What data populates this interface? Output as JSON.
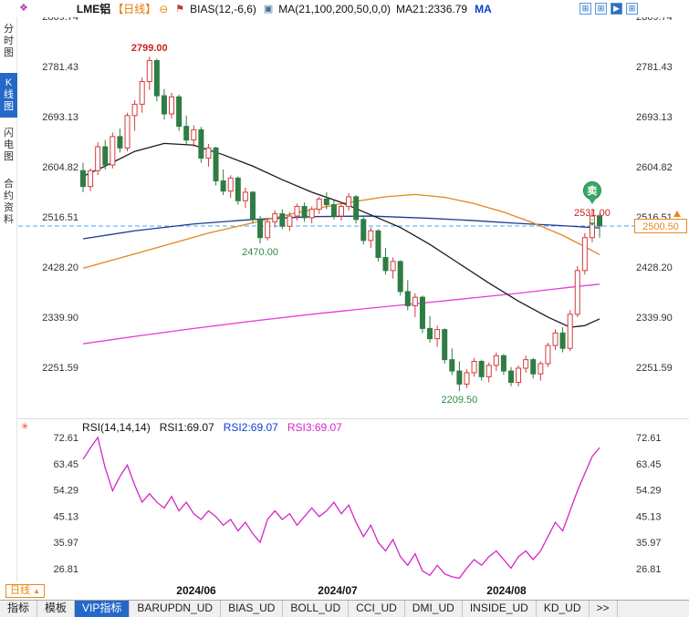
{
  "header": {
    "logo_icon": "❖",
    "symbol": "LME铝",
    "period": "【日线】",
    "minus_icon": "⊖",
    "pin_icon": "⚑",
    "bias_label": "BIAS(12,-6,6)",
    "box_icon": "▣",
    "ma_label": "MA(21,100,200,50,0,0)",
    "ma21_label": "MA21:2336.79",
    "ma_badge": "MA",
    "window_icons": [
      "⊞",
      "⊞",
      "▶",
      "⊞"
    ]
  },
  "sidebar": {
    "items": [
      {
        "label": "分时图",
        "active": false
      },
      {
        "label": "K线图",
        "active": true
      },
      {
        "label": "闪电图",
        "active": false
      },
      {
        "label": "合约资料",
        "active": false
      }
    ]
  },
  "rsi_header": {
    "star_icon": "✳",
    "label": "RSI(14,14,14)",
    "rsi1": "RSI1:69.07",
    "rsi2": "RSI2:69.07",
    "rsi3": "RSI3:69.07"
  },
  "bottom": {
    "period_label": "日线",
    "period_arrow": "▲",
    "tabs": [
      {
        "label": "指标",
        "active": false
      },
      {
        "label": "模板",
        "active": false
      },
      {
        "label": "VIP指标",
        "active": true
      },
      {
        "label": "BARUPDN_UD",
        "active": false
      },
      {
        "label": "BIAS_UD",
        "active": false
      },
      {
        "label": "BOLL_UD",
        "active": false
      },
      {
        "label": "CCI_UD",
        "active": false
      },
      {
        "label": "DMI_UD",
        "active": false
      },
      {
        "label": "INSIDE_UD",
        "active": false
      },
      {
        "label": "KD_UD",
        "active": false
      },
      {
        "label": ">>",
        "active": false
      }
    ]
  },
  "colors": {
    "up": "#d23c3c",
    "down": "#2e7d45",
    "dashed_line": "#4da6ff",
    "last_price": "#e8891a",
    "signal": "#3aa764",
    "rsi_line": "#d327c7",
    "high_label": "#cc2222",
    "low_label": "#2e8b44"
  },
  "chart_data": {
    "type": "candlestick",
    "title": "LME铝 日线",
    "price_axis": [
      2869.74,
      2781.43,
      2693.13,
      2604.82,
      2516.51,
      2428.2,
      2339.9,
      2251.59
    ],
    "x_labels": [
      "2024/06",
      "2024/07",
      "2024/08"
    ],
    "candles": [
      [
        2598,
        2612,
        2560,
        2570
      ],
      [
        2570,
        2602,
        2562,
        2598
      ],
      [
        2598,
        2648,
        2590,
        2640
      ],
      [
        2640,
        2652,
        2600,
        2608
      ],
      [
        2608,
        2665,
        2602,
        2658
      ],
      [
        2658,
        2672,
        2630,
        2638
      ],
      [
        2638,
        2700,
        2632,
        2695
      ],
      [
        2695,
        2722,
        2668,
        2715
      ],
      [
        2715,
        2762,
        2700,
        2755
      ],
      [
        2755,
        2799,
        2740,
        2792
      ],
      [
        2792,
        2795,
        2720,
        2730
      ],
      [
        2730,
        2742,
        2688,
        2698
      ],
      [
        2698,
        2735,
        2690,
        2728
      ],
      [
        2728,
        2732,
        2668,
        2676
      ],
      [
        2676,
        2695,
        2645,
        2652
      ],
      [
        2652,
        2678,
        2640,
        2670
      ],
      [
        2670,
        2675,
        2612,
        2620
      ],
      [
        2620,
        2645,
        2605,
        2638
      ],
      [
        2638,
        2640,
        2572,
        2580
      ],
      [
        2580,
        2600,
        2555,
        2562
      ],
      [
        2562,
        2590,
        2550,
        2585
      ],
      [
        2585,
        2588,
        2538,
        2545
      ],
      [
        2545,
        2568,
        2532,
        2560
      ],
      [
        2560,
        2562,
        2505,
        2512
      ],
      [
        2512,
        2518,
        2470,
        2480
      ],
      [
        2480,
        2512,
        2475,
        2508
      ],
      [
        2508,
        2528,
        2498,
        2522
      ],
      [
        2522,
        2530,
        2495,
        2500
      ],
      [
        2500,
        2525,
        2492,
        2518
      ],
      [
        2518,
        2540,
        2510,
        2535
      ],
      [
        2535,
        2542,
        2508,
        2515
      ],
      [
        2515,
        2535,
        2505,
        2530
      ],
      [
        2530,
        2552,
        2522,
        2548
      ],
      [
        2548,
        2560,
        2530,
        2538
      ],
      [
        2538,
        2545,
        2512,
        2518
      ],
      [
        2518,
        2542,
        2510,
        2535
      ],
      [
        2535,
        2558,
        2528,
        2552
      ],
      [
        2552,
        2555,
        2505,
        2512
      ],
      [
        2512,
        2518,
        2468,
        2475
      ],
      [
        2475,
        2498,
        2462,
        2492
      ],
      [
        2492,
        2495,
        2438,
        2445
      ],
      [
        2445,
        2462,
        2415,
        2422
      ],
      [
        2422,
        2445,
        2408,
        2438
      ],
      [
        2438,
        2440,
        2378,
        2385
      ],
      [
        2385,
        2405,
        2352,
        2360
      ],
      [
        2360,
        2382,
        2340,
        2375
      ],
      [
        2375,
        2378,
        2312,
        2320
      ],
      [
        2320,
        2342,
        2295,
        2302
      ],
      [
        2302,
        2325,
        2288,
        2318
      ],
      [
        2318,
        2320,
        2258,
        2265
      ],
      [
        2265,
        2285,
        2238,
        2245
      ],
      [
        2245,
        2262,
        2209.5,
        2222
      ],
      [
        2222,
        2248,
        2215,
        2242
      ],
      [
        2242,
        2268,
        2235,
        2262
      ],
      [
        2262,
        2265,
        2228,
        2235
      ],
      [
        2235,
        2260,
        2225,
        2255
      ],
      [
        2255,
        2278,
        2245,
        2272
      ],
      [
        2272,
        2275,
        2238,
        2245
      ],
      [
        2245,
        2252,
        2218,
        2225
      ],
      [
        2225,
        2255,
        2218,
        2250
      ],
      [
        2250,
        2272,
        2242,
        2265
      ],
      [
        2265,
        2268,
        2232,
        2240
      ],
      [
        2240,
        2262,
        2228,
        2258
      ],
      [
        2258,
        2295,
        2252,
        2290
      ],
      [
        2290,
        2318,
        2282,
        2312
      ],
      [
        2312,
        2322,
        2278,
        2285
      ],
      [
        2285,
        2352,
        2280,
        2345
      ],
      [
        2345,
        2430,
        2340,
        2422
      ],
      [
        2422,
        2488,
        2415,
        2480
      ],
      [
        2480,
        2531,
        2472,
        2518
      ],
      [
        2518,
        2522,
        2480,
        2500.5
      ]
    ],
    "ma_series": [
      {
        "name": "MA50",
        "color": "#23388f",
        "points": [
          [
            1,
            2478
          ],
          [
            8,
            2492
          ],
          [
            16,
            2504
          ],
          [
            24,
            2512
          ],
          [
            32,
            2517
          ],
          [
            40,
            2518
          ],
          [
            48,
            2514
          ],
          [
            54,
            2510
          ],
          [
            60,
            2505
          ],
          [
            66,
            2501
          ],
          [
            71,
            2497
          ]
        ]
      },
      {
        "name": "MA200",
        "color": "#e83bd8",
        "points": [
          [
            1,
            2293
          ],
          [
            8,
            2306
          ],
          [
            16,
            2320
          ],
          [
            24,
            2333
          ],
          [
            32,
            2345
          ],
          [
            40,
            2356
          ],
          [
            48,
            2366
          ],
          [
            54,
            2374
          ],
          [
            60,
            2382
          ],
          [
            64,
            2388
          ],
          [
            68,
            2394
          ],
          [
            71,
            2398
          ]
        ]
      },
      {
        "name": "MA100",
        "color": "#e2861c",
        "points": [
          [
            1,
            2426
          ],
          [
            6,
            2444
          ],
          [
            12,
            2466
          ],
          [
            18,
            2488
          ],
          [
            24,
            2506
          ],
          [
            30,
            2524
          ],
          [
            36,
            2540
          ],
          [
            42,
            2552
          ],
          [
            46,
            2556
          ],
          [
            50,
            2551
          ],
          [
            54,
            2540
          ],
          [
            58,
            2525
          ],
          [
            62,
            2506
          ],
          [
            66,
            2484
          ],
          [
            69,
            2464
          ],
          [
            71,
            2450
          ]
        ]
      },
      {
        "name": "MA21",
        "color": "#1a1a1a",
        "points": [
          [
            1,
            2588
          ],
          [
            4,
            2606
          ],
          [
            8,
            2632
          ],
          [
            12,
            2646
          ],
          [
            16,
            2643
          ],
          [
            20,
            2626
          ],
          [
            24,
            2606
          ],
          [
            28,
            2582
          ],
          [
            32,
            2560
          ],
          [
            36,
            2542
          ],
          [
            40,
            2520
          ],
          [
            44,
            2498
          ],
          [
            48,
            2468
          ],
          [
            52,
            2434
          ],
          [
            56,
            2400
          ],
          [
            60,
            2368
          ],
          [
            64,
            2340
          ],
          [
            67,
            2322
          ],
          [
            69,
            2325
          ],
          [
            71,
            2336.79
          ]
        ]
      }
    ],
    "annotations": {
      "high": {
        "label": "2799.00",
        "candle": 10
      },
      "low": {
        "label": "2470.00",
        "candle": 25
      },
      "bottom": {
        "label": "2209.50",
        "candle": 52
      },
      "signal": {
        "label": "卖",
        "price_label": "2531.00",
        "candle": 70
      },
      "last_price": 2500.5,
      "last_price_label": "2500.50"
    },
    "rsi": {
      "axis": [
        72.61,
        63.45,
        54.29,
        45.13,
        35.97,
        26.81
      ],
      "values": [
        65,
        69,
        72.6,
        62,
        54,
        59,
        63,
        56,
        50,
        53,
        50,
        48,
        52,
        47,
        50,
        46,
        44,
        47,
        45,
        42,
        44,
        40,
        43,
        39,
        36,
        44,
        47,
        44,
        46,
        42,
        45,
        48,
        45,
        47,
        50,
        46,
        49,
        43,
        38,
        42,
        36,
        33,
        37,
        31,
        28,
        32,
        26,
        24.5,
        28,
        25,
        24,
        23.5,
        27,
        30,
        28,
        31,
        33,
        30,
        27,
        31,
        33,
        30,
        33,
        38,
        43,
        40,
        47,
        54,
        60,
        66,
        69.07
      ]
    }
  }
}
